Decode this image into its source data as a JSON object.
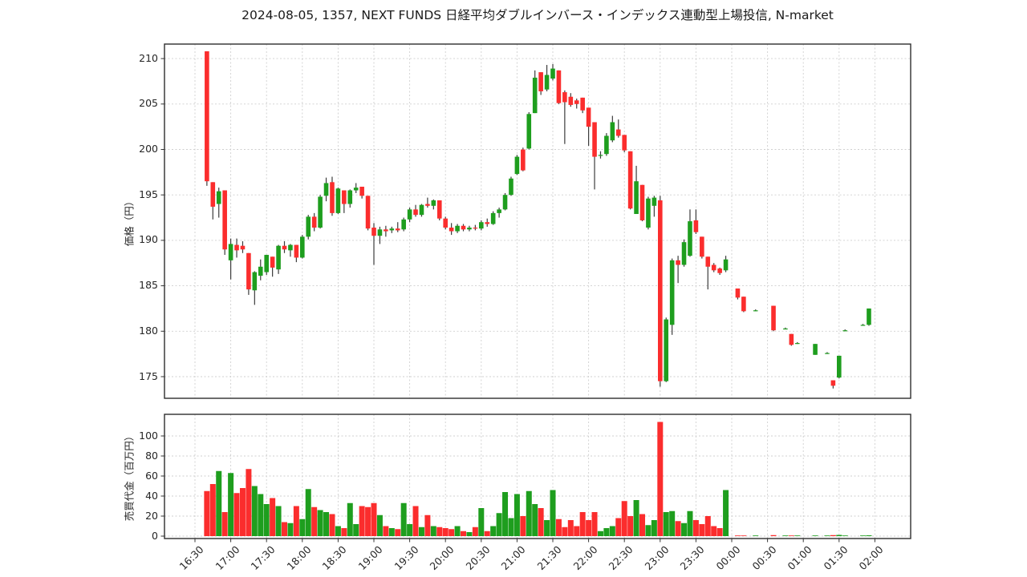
{
  "title": "2024-08-05, 1357, NEXT FUNDS 日経平均ダブルインバース・インデックス連動型上場投信, N-market",
  "price_panel": {
    "ylabel": "価格（円）",
    "yticks": [
      175,
      180,
      185,
      190,
      195,
      200,
      205,
      210
    ],
    "ylim": [
      172.5,
      211.7
    ]
  },
  "volume_panel": {
    "ylabel": "売買代金（百万円）",
    "yticks": [
      0,
      20,
      40,
      60,
      80,
      100
    ],
    "ylim": [
      0,
      121.5
    ]
  },
  "chart_data": {
    "type": "candlestick",
    "panels": [
      "price",
      "volume"
    ],
    "interval": "5m",
    "grid": true,
    "up_color": "#1e9e1e",
    "down_color": "#fb2d2d",
    "wick_color": "#3c3c3c",
    "x_ticks": [
      "16:30",
      "17:00",
      "17:30",
      "18:00",
      "18:30",
      "19:00",
      "19:30",
      "20:00",
      "20:30",
      "21:00",
      "21:30",
      "22:00",
      "22:30",
      "23:00",
      "23:30",
      "00:00",
      "00:30",
      "01:00",
      "01:30",
      "02:00"
    ],
    "columns": [
      "time",
      "open",
      "high",
      "low",
      "close",
      "volume_million_yen"
    ],
    "candles": [
      [
        "16:40",
        210.8,
        210.8,
        196.0,
        196.5,
        45
      ],
      [
        "16:45",
        196.4,
        196.4,
        192.3,
        193.7,
        52
      ],
      [
        "16:50",
        194.0,
        195.8,
        192.5,
        195.4,
        65
      ],
      [
        "16:55",
        195.5,
        195.5,
        188.4,
        189.0,
        24
      ],
      [
        "17:00",
        187.8,
        190.2,
        185.7,
        189.6,
        63
      ],
      [
        "17:05",
        189.5,
        190.2,
        188.1,
        188.9,
        43
      ],
      [
        "17:10",
        189.4,
        189.9,
        188.6,
        189.0,
        48
      ],
      [
        "17:15",
        188.6,
        188.6,
        184.0,
        184.6,
        67
      ],
      [
        "17:20",
        184.5,
        186.6,
        182.9,
        186.5,
        50
      ],
      [
        "17:25",
        186.1,
        187.9,
        185.6,
        187.1,
        42
      ],
      [
        "17:30",
        186.5,
        188.4,
        186.2,
        188.4,
        32
      ],
      [
        "17:35",
        188.2,
        188.2,
        186.0,
        187.0,
        38
      ],
      [
        "17:40",
        186.8,
        189.5,
        186.3,
        189.4,
        30
      ],
      [
        "17:45",
        189.4,
        189.9,
        188.6,
        189.0,
        14
      ],
      [
        "17:50",
        188.9,
        189.6,
        188.2,
        189.5,
        13
      ],
      [
        "17:55",
        189.5,
        189.5,
        187.6,
        188.1,
        30
      ],
      [
        "18:00",
        188.1,
        190.6,
        188.0,
        190.4,
        17
      ],
      [
        "18:05",
        190.4,
        192.8,
        190.1,
        192.6,
        47
      ],
      [
        "18:10",
        192.6,
        193.0,
        191.0,
        191.4,
        29
      ],
      [
        "18:15",
        191.4,
        195.0,
        191.3,
        194.8,
        26
      ],
      [
        "18:20",
        194.9,
        196.9,
        194.3,
        196.3,
        24
      ],
      [
        "18:25",
        196.4,
        197.0,
        192.7,
        193.0,
        22
      ],
      [
        "18:30",
        193.0,
        195.8,
        192.9,
        195.7,
        10
      ],
      [
        "18:35",
        195.5,
        195.5,
        193.0,
        194.0,
        8
      ],
      [
        "18:40",
        194.0,
        195.6,
        193.6,
        195.5,
        33
      ],
      [
        "18:45",
        195.5,
        196.3,
        195.2,
        195.8,
        12
      ],
      [
        "18:50",
        195.9,
        195.9,
        194.6,
        194.9,
        30
      ],
      [
        "18:55",
        194.9,
        194.9,
        191.1,
        191.3,
        29
      ],
      [
        "19:00",
        191.4,
        191.9,
        187.3,
        190.5,
        33
      ],
      [
        "19:05",
        190.5,
        191.5,
        189.6,
        191.2,
        21
      ],
      [
        "19:10",
        191.2,
        191.6,
        190.4,
        191.0,
        10
      ],
      [
        "19:15",
        191.1,
        191.5,
        190.8,
        191.3,
        8
      ],
      [
        "19:20",
        191.3,
        192.0,
        190.9,
        191.1,
        7
      ],
      [
        "19:25",
        191.2,
        192.5,
        191.0,
        192.3,
        33
      ],
      [
        "19:30",
        192.3,
        193.6,
        192.0,
        193.4,
        12
      ],
      [
        "19:35",
        193.4,
        193.9,
        192.6,
        192.8,
        30
      ],
      [
        "19:40",
        192.8,
        194.0,
        192.6,
        193.9,
        9
      ],
      [
        "19:45",
        194.0,
        194.7,
        193.6,
        193.8,
        21
      ],
      [
        "19:50",
        193.8,
        194.5,
        193.4,
        194.4,
        10
      ],
      [
        "19:55",
        194.4,
        194.4,
        192.2,
        192.4,
        9
      ],
      [
        "20:00",
        192.4,
        192.6,
        191.2,
        191.4,
        8
      ],
      [
        "20:05",
        191.4,
        191.9,
        190.6,
        191.0,
        7
      ],
      [
        "20:10",
        191.0,
        191.8,
        190.8,
        191.6,
        10
      ],
      [
        "20:15",
        191.6,
        191.8,
        191.0,
        191.2,
        5
      ],
      [
        "20:20",
        191.2,
        191.6,
        191.0,
        191.4,
        4
      ],
      [
        "20:25",
        191.4,
        191.7,
        191.1,
        191.3,
        9
      ],
      [
        "20:30",
        191.3,
        192.2,
        191.1,
        192.0,
        28
      ],
      [
        "20:35",
        192.0,
        192.4,
        191.5,
        191.8,
        5
      ],
      [
        "20:40",
        191.8,
        193.2,
        191.7,
        193.0,
        10
      ],
      [
        "20:45",
        193.0,
        193.6,
        192.5,
        193.4,
        23
      ],
      [
        "20:50",
        193.4,
        195.2,
        193.3,
        195.0,
        44
      ],
      [
        "20:55",
        195.0,
        197.0,
        194.9,
        196.8,
        18
      ],
      [
        "21:00",
        197.3,
        199.4,
        197.2,
        199.2,
        42
      ],
      [
        "21:05",
        200.0,
        200.2,
        197.6,
        197.7,
        20
      ],
      [
        "21:10",
        200.1,
        204.1,
        200.0,
        203.9,
        45
      ],
      [
        "21:15",
        204.0,
        208.7,
        204.0,
        207.9,
        32
      ],
      [
        "21:20",
        208.5,
        208.5,
        206.0,
        206.4,
        28
      ],
      [
        "21:25",
        206.6,
        209.3,
        206.4,
        208.2,
        16
      ],
      [
        "21:30",
        207.8,
        209.4,
        207.6,
        208.9,
        46
      ],
      [
        "21:35",
        208.7,
        208.7,
        205.0,
        205.1,
        17
      ],
      [
        "21:40",
        206.3,
        206.5,
        200.6,
        205.2,
        9
      ],
      [
        "21:45",
        205.8,
        206.2,
        204.7,
        204.9,
        16
      ],
      [
        "21:50",
        205.4,
        205.6,
        204.5,
        205.0,
        10
      ],
      [
        "21:55",
        205.7,
        205.7,
        204.0,
        204.3,
        24
      ],
      [
        "22:00",
        204.6,
        204.6,
        200.4,
        202.5,
        16
      ],
      [
        "22:05",
        203.0,
        203.0,
        195.6,
        199.2,
        24
      ],
      [
        "22:10",
        199.4,
        199.8,
        199.0,
        199.4,
        5
      ],
      [
        "22:15",
        199.5,
        201.8,
        199.3,
        201.5,
        8
      ],
      [
        "22:20",
        201.0,
        203.7,
        200.8,
        203.0,
        10
      ],
      [
        "22:25",
        202.2,
        203.3,
        201.3,
        201.5,
        18
      ],
      [
        "22:30",
        201.6,
        201.6,
        199.7,
        199.9,
        35
      ],
      [
        "22:35",
        199.8,
        199.8,
        193.4,
        193.5,
        20
      ],
      [
        "22:40",
        192.9,
        198.2,
        192.9,
        196.5,
        36
      ],
      [
        "22:45",
        196.1,
        196.1,
        192.1,
        192.2,
        22
      ],
      [
        "22:50",
        191.4,
        194.8,
        191.2,
        194.6,
        11
      ],
      [
        "22:55",
        193.8,
        194.9,
        192.6,
        194.7,
        16
      ],
      [
        "23:00",
        194.4,
        194.9,
        173.9,
        174.5,
        114
      ],
      [
        "23:05",
        174.5,
        181.5,
        174.4,
        181.3,
        24
      ],
      [
        "23:10",
        180.7,
        188.0,
        179.6,
        187.8,
        25
      ],
      [
        "23:15",
        187.8,
        188.3,
        185.3,
        187.3,
        15
      ],
      [
        "23:20",
        187.3,
        190.1,
        187.1,
        189.8,
        13
      ],
      [
        "23:25",
        188.3,
        193.4,
        188.2,
        192.1,
        25
      ],
      [
        "23:30",
        192.2,
        193.4,
        190.7,
        190.9,
        16
      ],
      [
        "23:35",
        190.4,
        190.4,
        188.0,
        188.2,
        12
      ],
      [
        "23:40",
        188.2,
        188.2,
        184.6,
        187.1,
        20
      ],
      [
        "23:45",
        187.3,
        187.5,
        186.5,
        186.7,
        10
      ],
      [
        "23:50",
        186.9,
        187.0,
        186.2,
        186.4,
        8
      ],
      [
        "23:55",
        186.7,
        188.3,
        186.5,
        187.9,
        46
      ],
      [
        "00:05",
        184.7,
        184.7,
        183.5,
        183.7,
        0.4
      ],
      [
        "00:10",
        183.8,
        183.8,
        182.1,
        182.2,
        0.4
      ],
      [
        "00:20",
        182.3,
        182.4,
        182.2,
        182.3,
        0.2
      ],
      [
        "00:35",
        182.8,
        182.8,
        180.0,
        180.1,
        1.0
      ],
      [
        "00:45",
        180.3,
        180.4,
        180.2,
        180.3,
        0.2
      ],
      [
        "00:50",
        179.7,
        179.7,
        178.4,
        178.5,
        0.5
      ],
      [
        "00:55",
        178.7,
        178.8,
        178.6,
        178.7,
        0.2
      ],
      [
        "01:10",
        177.4,
        178.6,
        177.4,
        178.6,
        0.3
      ],
      [
        "01:20",
        177.6,
        177.7,
        177.5,
        177.6,
        0.2
      ],
      [
        "01:25",
        174.6,
        174.6,
        173.7,
        174.0,
        1.0
      ],
      [
        "01:30",
        174.9,
        177.3,
        174.8,
        177.3,
        1.2
      ],
      [
        "01:35",
        180.1,
        180.2,
        180.0,
        180.1,
        0.2
      ],
      [
        "01:50",
        180.7,
        180.8,
        180.6,
        180.7,
        0.3
      ],
      [
        "01:55",
        180.7,
        182.5,
        180.6,
        182.5,
        0.8
      ]
    ]
  }
}
